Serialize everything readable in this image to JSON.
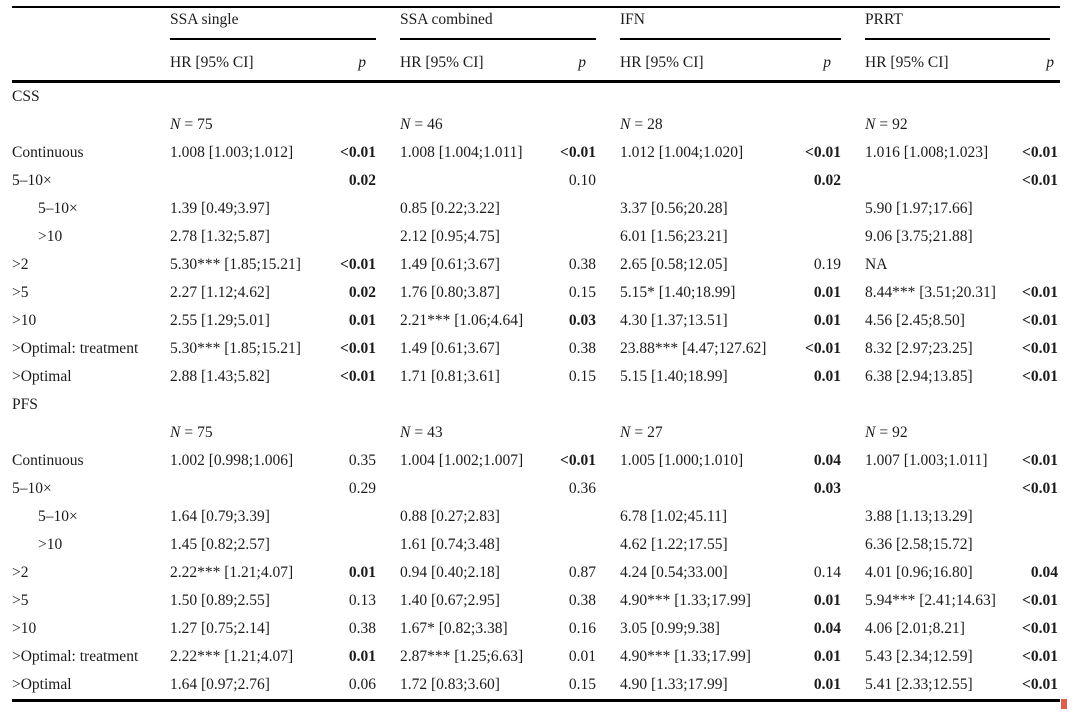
{
  "colors": {
    "text": "#1b1b1b",
    "background": "#ffffff",
    "rule": "#000000"
  },
  "header": {
    "n_symbol": "N",
    "n_eq": "=",
    "groups": [
      {
        "name": "SSA single",
        "hr_label": "HR [95% CI]",
        "p_label": "p"
      },
      {
        "name": "SSA combined",
        "hr_label": "HR [95% CI]",
        "p_label": "p"
      },
      {
        "name": "IFN",
        "hr_label": "HR [95% CI]",
        "p_label": "p"
      },
      {
        "name": "PRRT",
        "hr_label": "HR [95% CI]",
        "p_label": "p"
      }
    ]
  },
  "sections": [
    {
      "title": "CSS",
      "n_values": [
        "75",
        "46",
        "28",
        "92"
      ],
      "rows": [
        {
          "label": "Continuous",
          "indent": false,
          "cells": [
            {
              "hr": "1.008 [1.003;1.012]",
              "p": "<0.01",
              "p_bold": true
            },
            {
              "hr": "1.008 [1.004;1.011]",
              "p": "<0.01",
              "p_bold": true
            },
            {
              "hr": "1.012 [1.004;1.020]",
              "p": "<0.01",
              "p_bold": true
            },
            {
              "hr": "1.016 [1.008;1.023]",
              "p": "<0.01",
              "p_bold": true
            }
          ]
        },
        {
          "label": "5–10×",
          "indent": false,
          "cells": [
            {
              "hr": "",
              "p": "0.02",
              "p_bold": true
            },
            {
              "hr": "",
              "p": "0.10",
              "p_bold": false
            },
            {
              "hr": "",
              "p": "0.02",
              "p_bold": true
            },
            {
              "hr": "",
              "p": "<0.01",
              "p_bold": true
            }
          ]
        },
        {
          "label": "5–10×",
          "indent": true,
          "cells": [
            {
              "hr": "1.39 [0.49;3.97]",
              "p": ""
            },
            {
              "hr": "0.85 [0.22;3.22]",
              "p": ""
            },
            {
              "hr": "3.37 [0.56;20.28]",
              "p": ""
            },
            {
              "hr": "5.90 [1.97;17.66]",
              "p": ""
            }
          ]
        },
        {
          "label": ">10",
          "indent": true,
          "cells": [
            {
              "hr": "2.78 [1.32;5.87]",
              "p": ""
            },
            {
              "hr": "2.12 [0.95;4.75]",
              "p": ""
            },
            {
              "hr": "6.01 [1.56;23.21]",
              "p": ""
            },
            {
              "hr": "9.06 [3.75;21.88]",
              "p": ""
            }
          ]
        },
        {
          "label": ">2",
          "indent": false,
          "cells": [
            {
              "hr": "5.30*** [1.85;15.21]",
              "p": "<0.01",
              "p_bold": true
            },
            {
              "hr": "1.49 [0.61;3.67]",
              "p": "0.38",
              "p_bold": false
            },
            {
              "hr": "2.65 [0.58;12.05]",
              "p": "0.19",
              "p_bold": false
            },
            {
              "hr": "NA",
              "p": ""
            }
          ]
        },
        {
          "label": ">5",
          "indent": false,
          "cells": [
            {
              "hr": "2.27 [1.12;4.62]",
              "p": "0.02",
              "p_bold": true
            },
            {
              "hr": "1.76 [0.80;3.87]",
              "p": "0.15",
              "p_bold": false
            },
            {
              "hr": "5.15* [1.40;18.99]",
              "p": "0.01",
              "p_bold": true
            },
            {
              "hr": "8.44*** [3.51;20.31]",
              "p": "<0.01",
              "p_bold": true
            }
          ]
        },
        {
          "label": ">10",
          "indent": false,
          "cells": [
            {
              "hr": "2.55 [1.29;5.01]",
              "p": "0.01",
              "p_bold": true
            },
            {
              "hr": "2.21*** [1.06;4.64]",
              "p": "0.03",
              "p_bold": true
            },
            {
              "hr": "4.30 [1.37;13.51]",
              "p": "0.01",
              "p_bold": true
            },
            {
              "hr": "4.56 [2.45;8.50]",
              "p": "<0.01",
              "p_bold": true
            }
          ]
        },
        {
          "label": ">Optimal: treatment",
          "indent": false,
          "cells": [
            {
              "hr": "5.30*** [1.85;15.21]",
              "p": "<0.01",
              "p_bold": true
            },
            {
              "hr": "1.49 [0.61;3.67]",
              "p": "0.38",
              "p_bold": false
            },
            {
              "hr": "23.88*** [4.47;127.62]",
              "p": "<0.01",
              "p_bold": true
            },
            {
              "hr": "8.32 [2.97;23.25]",
              "p": "<0.01",
              "p_bold": true
            }
          ]
        },
        {
          "label": ">Optimal",
          "indent": false,
          "cells": [
            {
              "hr": "2.88 [1.43;5.82]",
              "p": "<0.01",
              "p_bold": true
            },
            {
              "hr": "1.71 [0.81;3.61]",
              "p": "0.15",
              "p_bold": false
            },
            {
              "hr": "5.15 [1.40;18.99]",
              "p": "0.01",
              "p_bold": true
            },
            {
              "hr": "6.38 [2.94;13.85]",
              "p": "<0.01",
              "p_bold": true
            }
          ]
        }
      ]
    },
    {
      "title": "PFS",
      "n_values": [
        "75",
        "43",
        "27",
        "92"
      ],
      "rows": [
        {
          "label": "Continuous",
          "indent": false,
          "cells": [
            {
              "hr": "1.002 [0.998;1.006]",
              "p": "0.35",
              "p_bold": false
            },
            {
              "hr": "1.004 [1.002;1.007]",
              "p": "<0.01",
              "p_bold": true
            },
            {
              "hr": "1.005 [1.000;1.010]",
              "p": "0.04",
              "p_bold": true
            },
            {
              "hr": "1.007 [1.003;1.011]",
              "p": "<0.01",
              "p_bold": true
            }
          ]
        },
        {
          "label": "5–10×",
          "indent": false,
          "cells": [
            {
              "hr": "",
              "p": "0.29",
              "p_bold": false
            },
            {
              "hr": "",
              "p": "0.36",
              "p_bold": false
            },
            {
              "hr": "",
              "p": "0.03",
              "p_bold": true
            },
            {
              "hr": "",
              "p": "<0.01",
              "p_bold": true
            }
          ]
        },
        {
          "label": "5–10×",
          "indent": true,
          "cells": [
            {
              "hr": "1.64 [0.79;3.39]",
              "p": ""
            },
            {
              "hr": "0.88 [0.27;2.83]",
              "p": ""
            },
            {
              "hr": "6.78 [1.02;45.11]",
              "p": ""
            },
            {
              "hr": "3.88 [1.13;13.29]",
              "p": ""
            }
          ]
        },
        {
          "label": ">10",
          "indent": true,
          "cells": [
            {
              "hr": "1.45 [0.82;2.57]",
              "p": ""
            },
            {
              "hr": "1.61 [0.74;3.48]",
              "p": ""
            },
            {
              "hr": "4.62 [1.22;17.55]",
              "p": ""
            },
            {
              "hr": "6.36 [2.58;15.72]",
              "p": ""
            }
          ]
        },
        {
          "label": ">2",
          "indent": false,
          "cells": [
            {
              "hr": "2.22*** [1.21;4.07]",
              "p": "0.01",
              "p_bold": true
            },
            {
              "hr": "0.94 [0.40;2.18]",
              "p": "0.87",
              "p_bold": false
            },
            {
              "hr": "4.24 [0.54;33.00]",
              "p": "0.14",
              "p_bold": false
            },
            {
              "hr": "4.01 [0.96;16.80]",
              "p": "0.04",
              "p_bold": true
            }
          ]
        },
        {
          "label": ">5",
          "indent": false,
          "cells": [
            {
              "hr": "1.50 [0.89;2.55]",
              "p": "0.13",
              "p_bold": false
            },
            {
              "hr": "1.40 [0.67;2.95]",
              "p": "0.38",
              "p_bold": false
            },
            {
              "hr": "4.90*** [1.33;17.99]",
              "p": "0.01",
              "p_bold": true
            },
            {
              "hr": "5.94*** [2.41;14.63]",
              "p": "<0.01",
              "p_bold": true
            }
          ]
        },
        {
          "label": ">10",
          "indent": false,
          "cells": [
            {
              "hr": "1.27 [0.75;2.14]",
              "p": "0.38",
              "p_bold": false
            },
            {
              "hr": "1.67* [0.82;3.38]",
              "p": "0.16",
              "p_bold": false
            },
            {
              "hr": "3.05 [0.99;9.38]",
              "p": "0.04",
              "p_bold": true
            },
            {
              "hr": "4.06 [2.01;8.21]",
              "p": "<0.01",
              "p_bold": true
            }
          ]
        },
        {
          "label": ">Optimal: treatment",
          "indent": false,
          "cells": [
            {
              "hr": "2.22*** [1.21;4.07]",
              "p": "0.01",
              "p_bold": true
            },
            {
              "hr": "2.87*** [1.25;6.63]",
              "p": "0.01",
              "p_bold": false
            },
            {
              "hr": "4.90*** [1.33;17.99]",
              "p": "0.01",
              "p_bold": true
            },
            {
              "hr": "5.43 [2.34;12.59]",
              "p": "<0.01",
              "p_bold": true
            }
          ]
        },
        {
          "label": ">Optimal",
          "indent": false,
          "cells": [
            {
              "hr": "1.64 [0.97;2.76]",
              "p": "0.06",
              "p_bold": false
            },
            {
              "hr": "1.72 [0.83;3.60]",
              "p": "0.15",
              "p_bold": false
            },
            {
              "hr": "4.90 [1.33;17.99]",
              "p": "0.01",
              "p_bold": true
            },
            {
              "hr": "5.41 [2.33;12.55]",
              "p": "<0.01",
              "p_bold": true
            }
          ]
        }
      ]
    }
  ]
}
